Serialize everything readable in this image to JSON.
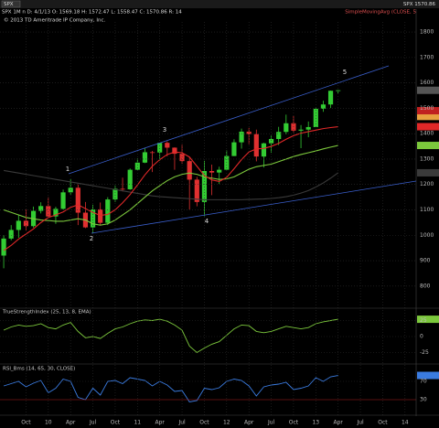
{
  "header": {
    "symbol": "SPX",
    "quote": "SPX 1570.86",
    "bar": "SPX 1M n D: 4/1/13 O: 1569.18 H: 1572.47 L: 1558.47 C: 1570.86 R: 14",
    "study": "SimpleMovingAvg (CLOSE, 5",
    "copyright": "© 2013 TD Ameritrade IP Company, Inc."
  },
  "chart_data": [
    {
      "type": "candlestick",
      "categories": [
        null,
        null,
        null,
        "Oct",
        null,
        null,
        "10",
        null,
        null,
        "Apr",
        null,
        null,
        "Jul",
        null,
        null,
        "Oct",
        null,
        null,
        "11",
        null,
        null,
        "Apr",
        null,
        null,
        "Jul",
        null,
        null,
        "Oct",
        null,
        null,
        "12",
        null,
        null,
        "Apr",
        null,
        null,
        "Jul",
        null,
        null,
        "Oct",
        null,
        null,
        "13",
        null,
        null,
        "Apr",
        null,
        null,
        "Jul",
        null,
        null,
        "Oct",
        null,
        null,
        "14",
        null
      ],
      "open": [
        920,
        987,
        1021,
        1057,
        1036,
        1096,
        1115,
        1074,
        1104,
        1169,
        1187,
        1089,
        1031,
        1102,
        1049,
        1141,
        1183,
        1181,
        1258,
        1286,
        1327,
        1326,
        1364,
        1345,
        1321,
        1292,
        1219,
        1131,
        1253,
        1247,
        1258,
        1312,
        1366,
        1408,
        1398,
        1310,
        1362,
        1379,
        1407,
        1441,
        1412,
        1416,
        1426,
        1498,
        1515,
        1569.18,
        null,
        null,
        null,
        null,
        null,
        null,
        null,
        null,
        null,
        null
      ],
      "high": [
        1000,
        1040,
        1080,
        1101,
        1113,
        1130,
        1150,
        1112,
        1180,
        1220,
        1200,
        1131,
        1120,
        1129,
        1150,
        1196,
        1227,
        1263,
        1303,
        1344,
        1332,
        1364,
        1370,
        1346,
        1357,
        1308,
        1230,
        1293,
        1278,
        1270,
        1334,
        1378,
        1420,
        1423,
        1416,
        1364,
        1392,
        1427,
        1475,
        1470,
        1434,
        1448,
        1503,
        1530,
        1570,
        1572.47,
        null,
        null,
        null,
        null,
        null,
        null,
        null,
        null,
        null,
        null
      ],
      "low": [
        870,
        980,
        990,
        1020,
        1030,
        1086,
        1071,
        1045,
        1101,
        1160,
        1040,
        1028,
        1010,
        1040,
        1040,
        1131,
        1173,
        1179,
        1257,
        1284,
        1249,
        1294,
        1311,
        1258,
        1282,
        1101,
        1114,
        1075,
        1158,
        1202,
        1258,
        1312,
        1341,
        1358,
        1291,
        1267,
        1325,
        1355,
        1397,
        1403,
        1343,
        1386,
        1426,
        1486,
        1501,
        1558.47,
        null,
        null,
        null,
        null,
        null,
        null,
        null,
        null,
        null,
        null
      ],
      "close": [
        987,
        1021,
        1057,
        1036,
        1096,
        1115,
        1074,
        1104,
        1169,
        1187,
        1089,
        1031,
        1102,
        1049,
        1141,
        1183,
        1181,
        1258,
        1286,
        1327,
        1326,
        1364,
        1345,
        1321,
        1292,
        1219,
        1131,
        1253,
        1247,
        1258,
        1312,
        1366,
        1408,
        1398,
        1310,
        1362,
        1379,
        1407,
        1441,
        1412,
        1416,
        1426,
        1498,
        1515,
        1569,
        1570.86,
        null,
        null,
        null,
        null,
        null,
        null,
        null,
        null,
        null,
        null
      ],
      "up_color": "#33cc33",
      "down_color": "#e03030",
      "series": [
        {
          "color": "#e02828",
          "values": [
            940,
            960,
            985,
            1005,
            1025,
            1050,
            1070,
            1080,
            1092,
            1110,
            1120,
            1105,
            1090,
            1078,
            1082,
            1100,
            1128,
            1160,
            1198,
            1238,
            1272,
            1298,
            1318,
            1328,
            1325,
            1308,
            1272,
            1235,
            1218,
            1212,
            1228,
            1262,
            1298,
            1328,
            1340,
            1342,
            1350,
            1362,
            1378,
            1392,
            1402,
            1408,
            1414,
            1420,
            1424,
            1427.58,
            null,
            null,
            null,
            null,
            null,
            null,
            null,
            null,
            null,
            null
          ]
        },
        {
          "color": "#7cc83c",
          "values": [
            1100,
            1090,
            1080,
            1070,
            1065,
            1060,
            1058,
            1055,
            1055,
            1060,
            1065,
            1060,
            1045,
            1040,
            1045,
            1060,
            1080,
            1100,
            1125,
            1150,
            1175,
            1195,
            1215,
            1230,
            1240,
            1245,
            1240,
            1230,
            1225,
            1220,
            1222,
            1230,
            1245,
            1260,
            1270,
            1275,
            1280,
            1290,
            1300,
            1310,
            1318,
            1325,
            1332,
            1340,
            1347,
            1353.67,
            null,
            null,
            null,
            null,
            null,
            null,
            null,
            null,
            null,
            null
          ]
        },
        {
          "color": "#3a3a3a",
          "values": [
            1255,
            1250,
            1245,
            1240,
            1235,
            1230,
            1225,
            1220,
            1215,
            1210,
            1205,
            1200,
            1195,
            1190,
            1185,
            1180,
            1175,
            1170,
            1165,
            1160,
            1155,
            1152,
            1150,
            1148,
            1146,
            1144,
            1142,
            1140,
            1140,
            1140,
            1140,
            1140,
            1140,
            1141,
            1142,
            1143,
            1145,
            1148,
            1152,
            1158,
            1166,
            1176,
            1190,
            1206,
            1225,
            1245.97,
            null,
            null,
            null,
            null,
            null,
            null,
            null,
            null,
            null,
            null
          ]
        }
      ],
      "extra_labels": [
        {
          "value": 1490.53,
          "color": "#c02020"
        },
        {
          "value": 1467.93,
          "color": "#e8a040"
        }
      ],
      "annotations": [
        "1",
        "2",
        "3",
        "4",
        "5"
      ],
      "ylim": [
        720,
        1840
      ],
      "yticks": [
        800,
        900,
        1000,
        1100,
        1200,
        1300,
        1400,
        1500,
        1600,
        1700,
        1800
      ],
      "grid": true
    },
    {
      "type": "line",
      "title": "TrueStrengthIndex (25, 13, 8, EMA)",
      "color": "#7cc83c",
      "values": [
        10,
        15,
        18,
        16,
        17,
        20,
        14,
        12,
        18,
        22,
        8,
        -2,
        0,
        -3,
        5,
        12,
        15,
        20,
        24,
        26,
        25,
        27,
        24,
        18,
        10,
        -15,
        -25,
        -18,
        -12,
        -8,
        2,
        12,
        18,
        17,
        8,
        6,
        8,
        12,
        16,
        14,
        12,
        14,
        20,
        23,
        25,
        26.9983
      ],
      "ylim": [
        -40,
        40
      ],
      "yticks": [
        -25,
        0,
        25
      ],
      "grid": true
    },
    {
      "type": "line",
      "title": "RSI_Bms (14, 65, 30, CLOSE)",
      "color": "#3a7be0",
      "values": [
        60,
        65,
        70,
        58,
        66,
        72,
        45,
        55,
        75,
        70,
        35,
        30,
        55,
        40,
        70,
        72,
        65,
        78,
        75,
        72,
        60,
        70,
        62,
        48,
        50,
        25,
        28,
        55,
        52,
        56,
        70,
        75,
        72,
        60,
        38,
        58,
        62,
        64,
        68,
        52,
        55,
        60,
        78,
        70,
        80,
        82.9702
      ],
      "ylim": [
        0,
        100
      ],
      "yticks": [
        30,
        70
      ],
      "grid": true
    }
  ]
}
